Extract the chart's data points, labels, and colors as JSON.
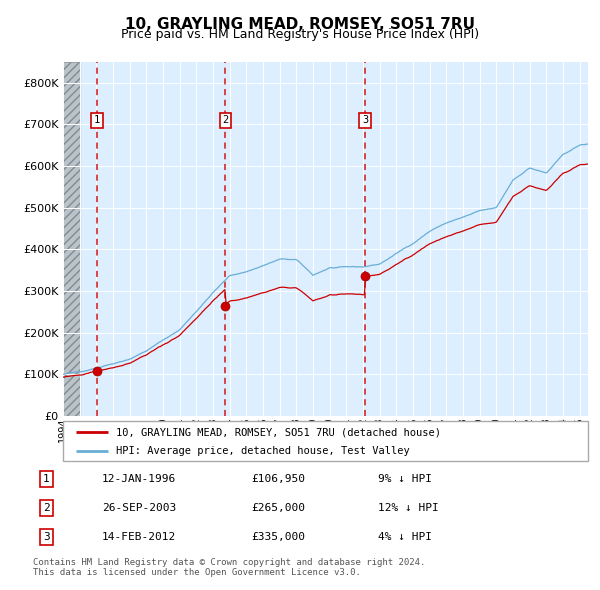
{
  "title": "10, GRAYLING MEAD, ROMSEY, SO51 7RU",
  "subtitle": "Price paid vs. HM Land Registry's House Price Index (HPI)",
  "legend_property": "10, GRAYLING MEAD, ROMSEY, SO51 7RU (detached house)",
  "legend_hpi": "HPI: Average price, detached house, Test Valley",
  "footer_line1": "Contains HM Land Registry data © Crown copyright and database right 2024.",
  "footer_line2": "This data is licensed under the Open Government Licence v3.0.",
  "transactions": [
    {
      "num": 1,
      "date": "12-JAN-1996",
      "price": 106950,
      "pct": "9%",
      "direction": "↓"
    },
    {
      "num": 2,
      "date": "26-SEP-2003",
      "price": 265000,
      "pct": "12%",
      "direction": "↓"
    },
    {
      "num": 3,
      "date": "14-FEB-2012",
      "price": 335000,
      "pct": "4%",
      "direction": "↓"
    }
  ],
  "transaction_dates_decimal": [
    1996.036,
    2003.736,
    2012.122
  ],
  "sale_prices": [
    106950,
    265000,
    335000
  ],
  "hpi_color": "#6aaed6",
  "property_color": "#cc0000",
  "background_chart": "#ddeeff",
  "grid_color": "#ffffff",
  "dashed_line_color": "#cc0000",
  "ylim": [
    0,
    850000
  ],
  "xlim_start": 1994.0,
  "xlim_end": 2025.5,
  "yticks": [
    0,
    100000,
    200000,
    300000,
    400000,
    500000,
    600000,
    700000,
    800000
  ],
  "hpi_control_t": [
    1994.0,
    1995.0,
    1996.0,
    1997.0,
    1998.0,
    1999.0,
    2000.0,
    2001.0,
    2002.0,
    2003.0,
    2004.0,
    2005.0,
    2006.0,
    2007.0,
    2008.0,
    2009.0,
    2010.0,
    2011.0,
    2012.0,
    2013.0,
    2014.0,
    2015.0,
    2016.0,
    2017.0,
    2018.0,
    2019.0,
    2020.0,
    2021.0,
    2022.0,
    2023.0,
    2024.0,
    2025.0,
    2025.5
  ],
  "hpi_control_v": [
    100000,
    105000,
    116000,
    128000,
    140000,
    160000,
    185000,
    210000,
    255000,
    300000,
    340000,
    350000,
    365000,
    380000,
    378000,
    340000,
    358000,
    358000,
    358000,
    365000,
    390000,
    415000,
    445000,
    465000,
    478000,
    492000,
    498000,
    565000,
    595000,
    582000,
    625000,
    648000,
    650000
  ]
}
